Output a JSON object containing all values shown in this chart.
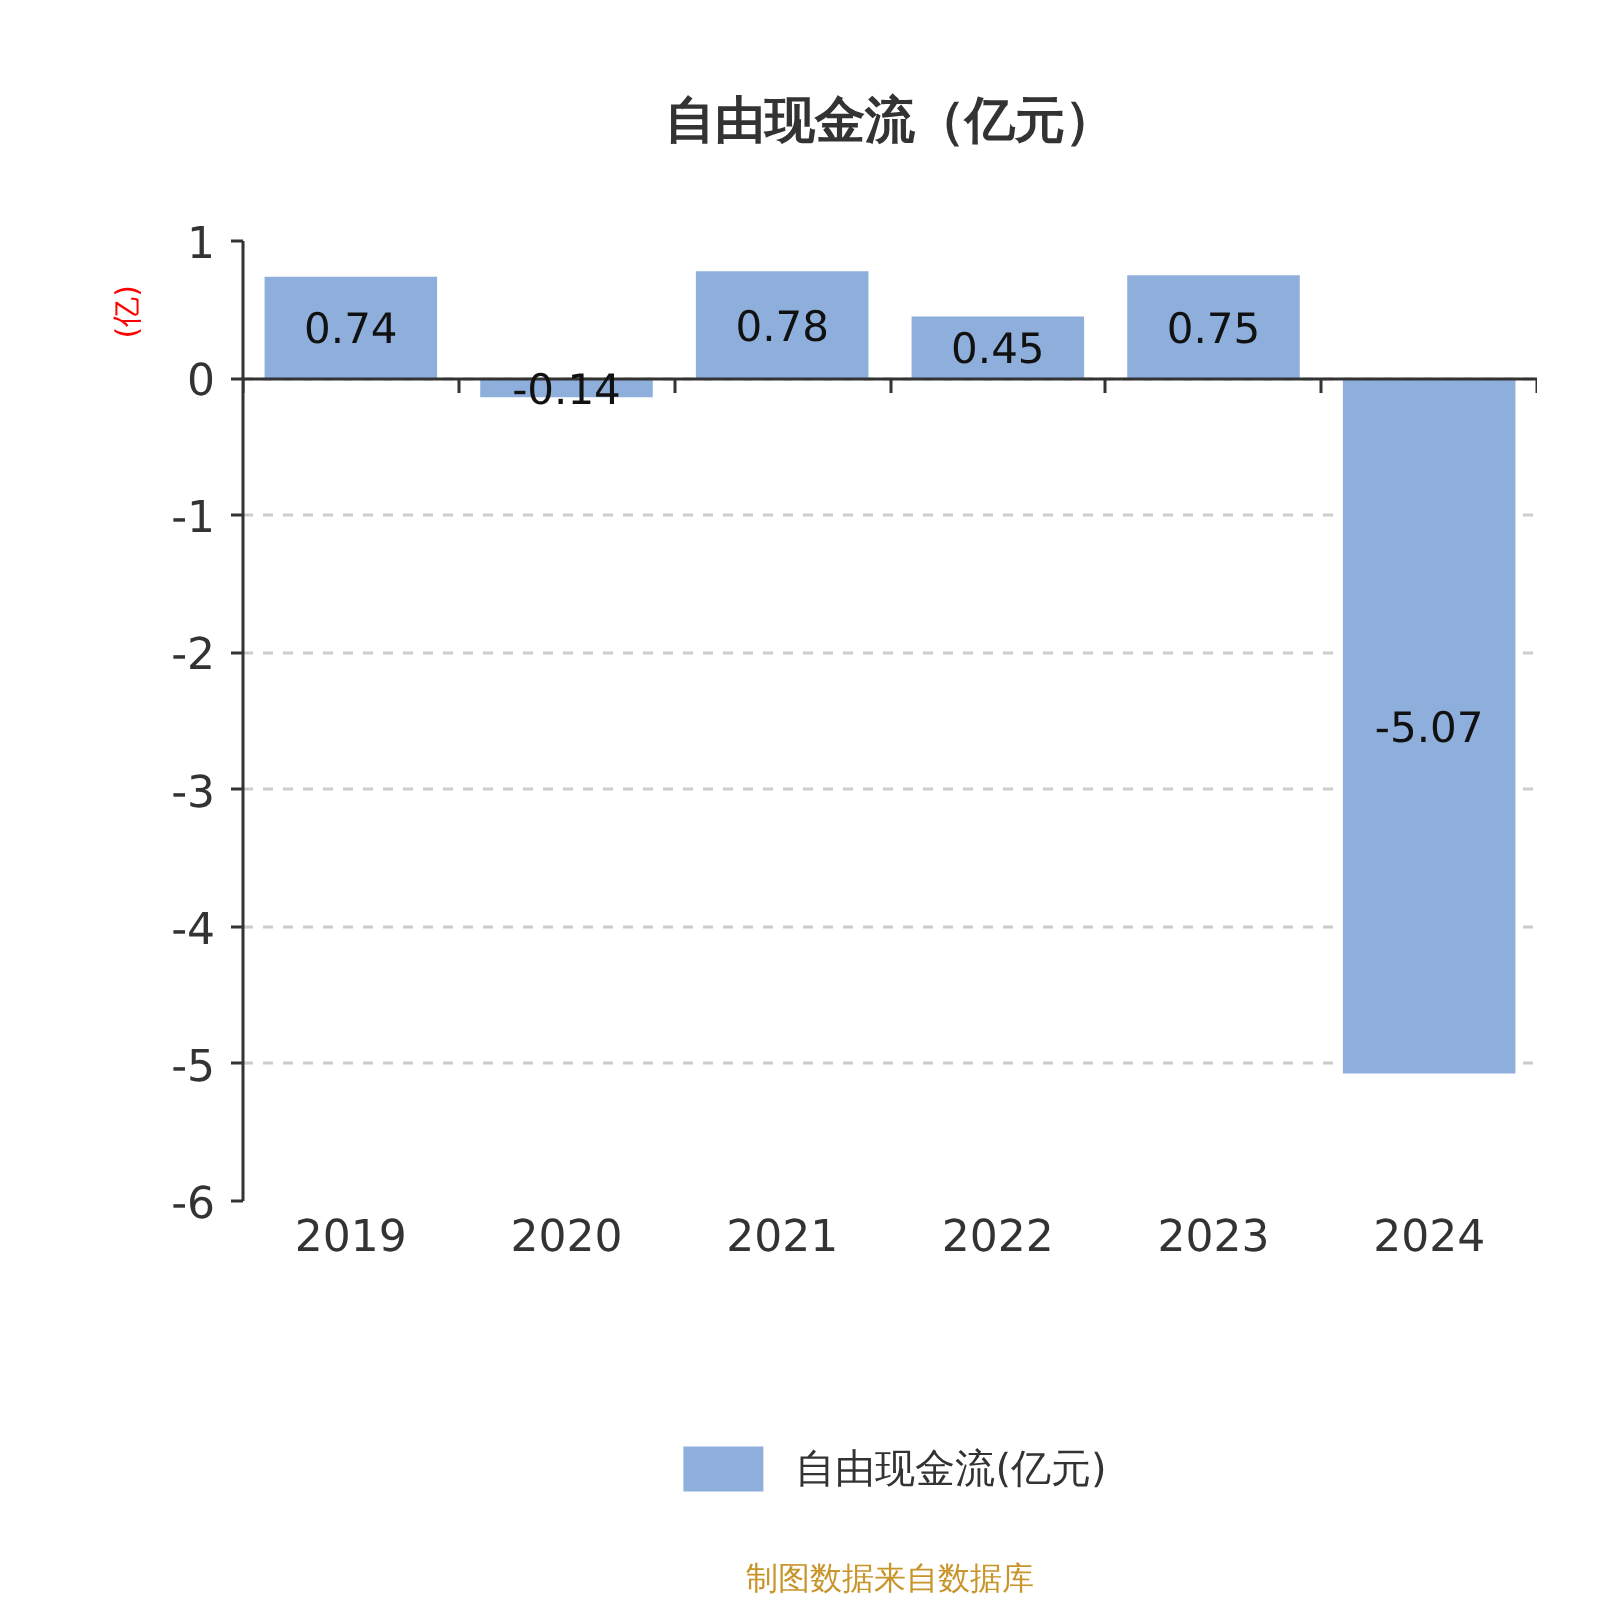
{
  "chart_data": {
    "type": "bar",
    "title": "自由现金流（亿元）",
    "ylabel": "(亿)",
    "categories": [
      "2019",
      "2020",
      "2021",
      "2022",
      "2023",
      "2024"
    ],
    "series": [
      {
        "name": "自由现金流(亿元)",
        "color": "#8eaedb",
        "values": [
          0.74,
          -0.14,
          0.78,
          0.45,
          0.75,
          -5.07
        ]
      }
    ],
    "ylim": [
      -6,
      1
    ],
    "yticks": [
      1,
      0,
      -1,
      -2,
      -3,
      -4,
      -5,
      -6
    ],
    "grid": "y",
    "legend": "bottom",
    "data_labels": true,
    "annotations": [
      "制图数据来自数据库"
    ]
  }
}
